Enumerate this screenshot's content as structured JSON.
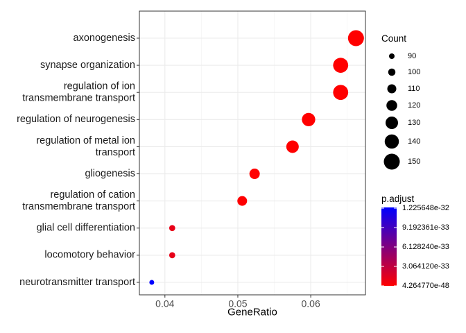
{
  "chart_data": {
    "type": "scatter",
    "xlabel": "GeneRatio",
    "ylabel": "",
    "title": "",
    "xlim": [
      0.0365,
      0.0675
    ],
    "xticks": [
      0.04,
      0.05,
      0.06
    ],
    "xtick_labels": [
      "0.04",
      "0.05",
      "0.06"
    ],
    "grid": true,
    "legend_position": "right",
    "categories": [
      "axonogenesis",
      "synapse organization",
      "regulation of ion\ntransmembrane transport",
      "regulation of neurogenesis",
      "regulation of metal ion\ntransport",
      "gliogenesis",
      "regulation of cation\ntransmembrane transport",
      "glial cell differentiation",
      "locomotory behavior",
      "neurotransmitter transport"
    ],
    "points": [
      {
        "x": 0.0662,
        "count": 150,
        "p_adjust": 4.2e-48
      },
      {
        "x": 0.0641,
        "count": 145,
        "p_adjust": 5e-47
      },
      {
        "x": 0.0641,
        "count": 145,
        "p_adjust": 5e-47
      },
      {
        "x": 0.0597,
        "count": 135,
        "p_adjust": 2e-45
      },
      {
        "x": 0.0575,
        "count": 130,
        "p_adjust": 8e-45
      },
      {
        "x": 0.0523,
        "count": 118,
        "p_adjust": 1e-42
      },
      {
        "x": 0.0506,
        "count": 114,
        "p_adjust": 5e-42
      },
      {
        "x": 0.041,
        "count": 93,
        "p_adjust": 1e-37
      },
      {
        "x": 0.041,
        "count": 93,
        "p_adjust": 1.2e-37
      },
      {
        "x": 0.0382,
        "count": 86,
        "p_adjust": 1.225648e-32
      }
    ],
    "size_legend": {
      "title": "Count",
      "values": [
        90,
        100,
        110,
        120,
        130,
        140,
        150
      ],
      "labels": [
        "90",
        "100",
        "110",
        "120",
        "130",
        "140",
        "150"
      ]
    },
    "color_legend": {
      "title": "p.adjust",
      "labels": [
        "1.225648e-32",
        "9.192361e-33",
        "6.128240e-33",
        "3.064120e-33",
        "4.264770e-48"
      ],
      "low_color": "#ff0000",
      "high_color": "#0000ff",
      "min": 4.26477e-48,
      "max": 1.225648e-32
    }
  }
}
